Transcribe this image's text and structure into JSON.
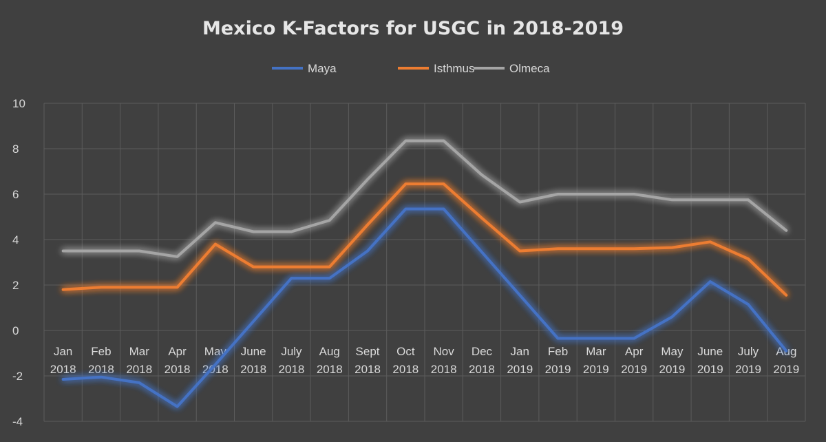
{
  "chart_data": {
    "type": "line",
    "title": "Mexico K-Factors for USGC in 2018-2019",
    "xlabel": "",
    "ylabel": "",
    "ylim": [
      -4,
      10
    ],
    "yticks": [
      "10",
      "8",
      "6",
      "4",
      "2",
      "0",
      "-2",
      "-4"
    ],
    "grid": true,
    "legend_position": "top",
    "categories": [
      [
        "Jan",
        "2018"
      ],
      [
        "Feb",
        "2018"
      ],
      [
        "Mar",
        "2018"
      ],
      [
        "Apr",
        "2018"
      ],
      [
        "May",
        "2018"
      ],
      [
        "June",
        "2018"
      ],
      [
        "July",
        "2018"
      ],
      [
        "Aug",
        "2018"
      ],
      [
        "Sept",
        "2018"
      ],
      [
        "Oct",
        "2018"
      ],
      [
        "Nov",
        "2018"
      ],
      [
        "Dec",
        "2018"
      ],
      [
        "Jan",
        "2019"
      ],
      [
        "Feb",
        "2019"
      ],
      [
        "Mar",
        "2019"
      ],
      [
        "Apr",
        "2019"
      ],
      [
        "May",
        "2019"
      ],
      [
        "June",
        "2019"
      ],
      [
        "July",
        "2019"
      ],
      [
        "Aug",
        "2019"
      ]
    ],
    "series": [
      {
        "name": "Maya",
        "color": "#4472c4",
        "values": [
          -2.15,
          -2.05,
          -2.3,
          -3.35,
          -1.5,
          0.4,
          2.3,
          2.3,
          3.5,
          5.35,
          5.35,
          3.45,
          1.55,
          -0.35,
          -0.35,
          -0.35,
          0.6,
          2.15,
          1.15,
          -0.9
        ]
      },
      {
        "name": "Isthmus",
        "color": "#ed7d31",
        "values": [
          1.8,
          1.9,
          1.9,
          1.9,
          3.8,
          2.8,
          2.8,
          2.8,
          4.65,
          6.45,
          6.45,
          4.95,
          3.5,
          3.6,
          3.6,
          3.6,
          3.65,
          3.9,
          3.15,
          1.55
        ]
      },
      {
        "name": "Olmeca",
        "color": "#a5a5a5",
        "values": [
          3.5,
          3.5,
          3.5,
          3.25,
          4.75,
          4.35,
          4.35,
          4.85,
          6.65,
          8.35,
          8.35,
          6.85,
          5.65,
          6.0,
          6.0,
          6.0,
          5.75,
          5.75,
          5.75,
          4.4
        ]
      }
    ]
  }
}
